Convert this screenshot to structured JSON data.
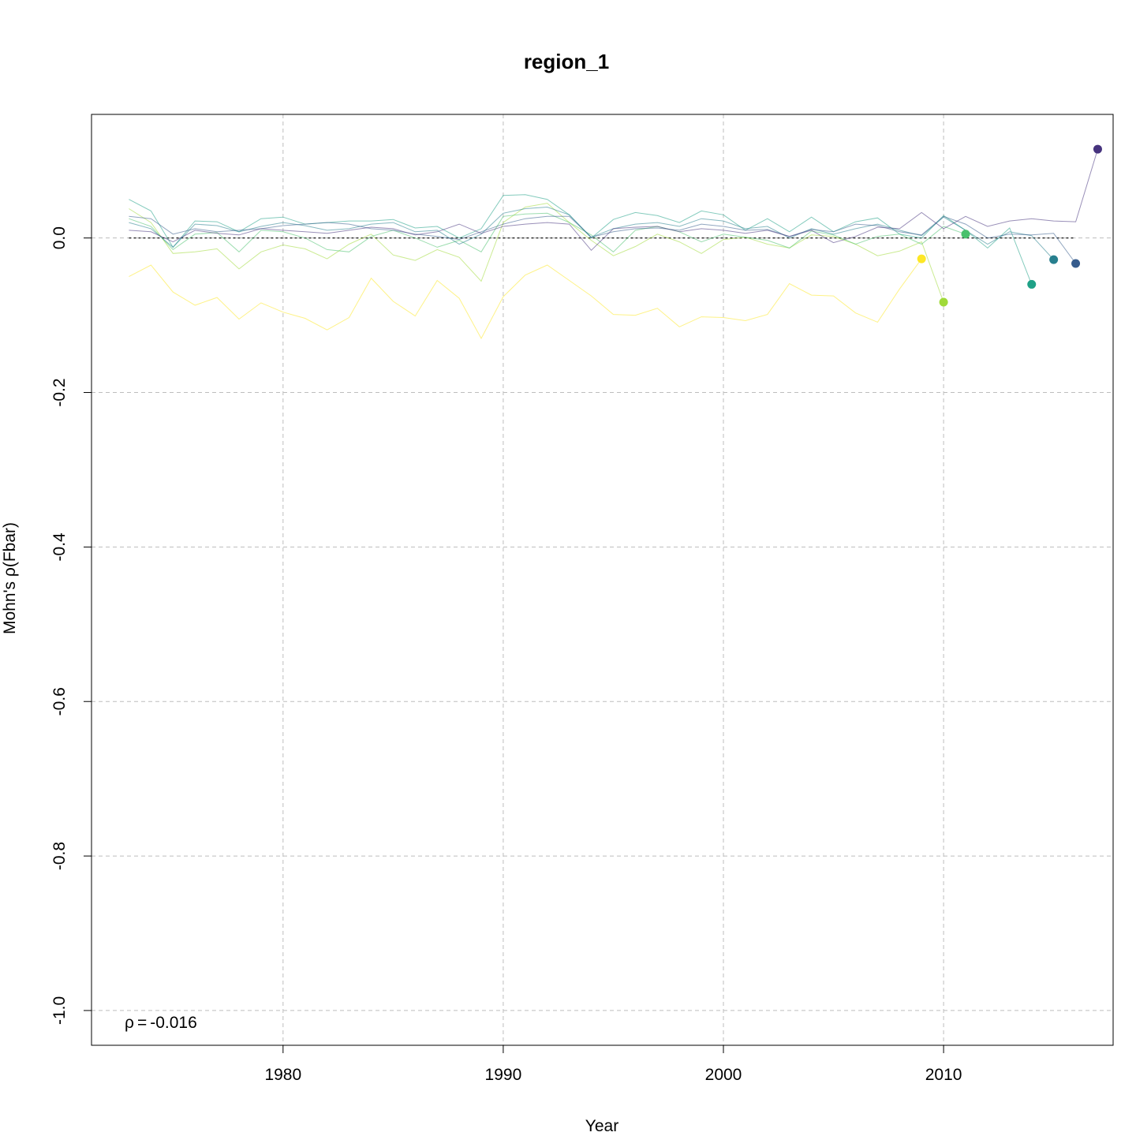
{
  "chart_data": {
    "type": "line",
    "title": "region_1",
    "xlabel": "Year",
    "ylabel": "Mohn's ρ(Fbar)",
    "xlim": [
      1971.3,
      2017.7
    ],
    "ylim": [
      -1.045,
      0.16
    ],
    "xticks": [
      1980,
      1990,
      2000,
      2010
    ],
    "yticks": [
      0.0,
      -0.2,
      -0.4,
      -0.6,
      -0.8,
      -1.0
    ],
    "ytick_labels": [
      "0.0",
      "-0.2",
      "-0.4",
      "-0.6",
      "-0.8",
      "-1.0"
    ],
    "grid": true,
    "reference_line": {
      "y": 0,
      "x_from": 1973,
      "x_to": 2016
    },
    "annotation": {
      "symbol": "ρ",
      "operator": "=",
      "value": "-0.016"
    },
    "x_start": 1973,
    "series": [
      {
        "color": "#FDE725",
        "values": [
          -0.05,
          -0.035,
          -0.07,
          -0.087,
          -0.077,
          -0.105,
          -0.084,
          -0.096,
          -0.104,
          -0.119,
          -0.103,
          -0.052,
          -0.082,
          -0.101,
          -0.055,
          -0.078,
          -0.13,
          -0.076,
          -0.048,
          -0.035,
          -0.055,
          -0.075,
          -0.099,
          -0.1,
          -0.091,
          -0.115,
          -0.102,
          -0.103,
          -0.107,
          -0.099,
          -0.059,
          -0.074,
          -0.075,
          -0.097,
          -0.109,
          -0.066,
          -0.027
        ],
        "end_point": -0.027
      },
      {
        "color": "#A0DA39",
        "values": [
          0.038,
          0.02,
          -0.02,
          -0.018,
          -0.014,
          -0.04,
          -0.018,
          -0.009,
          -0.014,
          -0.027,
          -0.008,
          0.005,
          -0.022,
          -0.029,
          -0.015,
          -0.025,
          -0.056,
          0.02,
          0.04,
          0.045,
          0.02,
          -0.003,
          -0.023,
          -0.011,
          0.005,
          -0.005,
          -0.02,
          -0.002,
          0.001,
          -0.008,
          -0.013,
          0.004,
          0.002,
          -0.008,
          -0.023,
          -0.017,
          -0.005,
          -0.083
        ],
        "end_point": -0.083
      },
      {
        "color": "#4AC16D",
        "values": [
          0.025,
          0.015,
          -0.015,
          0.005,
          0.007,
          -0.018,
          0.01,
          0.008,
          0.0,
          -0.015,
          -0.018,
          0.002,
          0.01,
          0.0,
          -0.012,
          -0.003,
          -0.018,
          0.028,
          0.031,
          0.032,
          0.02,
          0.004,
          -0.018,
          0.01,
          0.015,
          0.008,
          -0.005,
          0.005,
          0.001,
          -0.003,
          -0.013,
          0.009,
          0.004,
          -0.008,
          0.002,
          0.005,
          -0.008,
          0.015,
          0.005
        ],
        "end_point": 0.005
      },
      {
        "color": "#1FA187",
        "values": [
          0.05,
          0.035,
          -0.012,
          0.022,
          0.021,
          0.008,
          0.025,
          0.027,
          0.018,
          0.02,
          0.022,
          0.022,
          0.024,
          0.013,
          0.015,
          0.0,
          0.012,
          0.055,
          0.056,
          0.05,
          0.03,
          0.0,
          0.024,
          0.033,
          0.029,
          0.02,
          0.035,
          0.03,
          0.01,
          0.025,
          0.008,
          0.027,
          0.008,
          0.021,
          0.026,
          0.005,
          0.0,
          0.029,
          0.01,
          -0.013,
          0.013,
          -0.06
        ],
        "end_point": -0.06
      },
      {
        "color": "#277F8E",
        "values": [
          0.02,
          0.012,
          -0.012,
          0.018,
          0.016,
          0.008,
          0.015,
          0.02,
          0.016,
          0.01,
          0.012,
          0.018,
          0.02,
          0.008,
          0.01,
          -0.008,
          0.005,
          0.032,
          0.038,
          0.04,
          0.03,
          0.001,
          0.012,
          0.018,
          0.02,
          0.015,
          0.025,
          0.022,
          0.012,
          0.015,
          0.0,
          0.012,
          0.005,
          0.012,
          0.018,
          0.01,
          0.003,
          0.027,
          0.01,
          -0.008,
          0.008,
          0.003,
          -0.028
        ],
        "end_point": -0.028
      },
      {
        "color": "#365C8D",
        "values": [
          0.028,
          0.025,
          0.005,
          0.012,
          0.008,
          0.01,
          0.012,
          0.016,
          0.018,
          0.02,
          0.018,
          0.012,
          0.01,
          0.005,
          0.002,
          -0.002,
          0.008,
          0.018,
          0.025,
          0.028,
          0.028,
          0.001,
          0.008,
          0.012,
          0.013,
          0.01,
          0.018,
          0.015,
          0.01,
          0.011,
          0.002,
          0.011,
          0.008,
          0.018,
          0.016,
          0.008,
          0.004,
          0.028,
          0.018,
          0.0,
          0.005,
          0.004,
          0.006,
          -0.033
        ],
        "end_point": -0.033
      },
      {
        "color": "#46337E",
        "values": [
          0.01,
          0.008,
          -0.005,
          0.01,
          0.006,
          0.004,
          0.012,
          0.01,
          0.008,
          0.006,
          0.01,
          0.014,
          0.012,
          0.004,
          0.008,
          0.018,
          0.006,
          0.015,
          0.018,
          0.02,
          0.018,
          -0.016,
          0.012,
          0.014,
          0.015,
          0.008,
          0.012,
          0.01,
          0.006,
          0.01,
          0.002,
          0.01,
          -0.006,
          0.002,
          0.014,
          0.012,
          0.033,
          0.012,
          0.028,
          0.015,
          0.022,
          0.025,
          0.022,
          0.021,
          0.115
        ],
        "end_point": 0.115
      }
    ]
  }
}
